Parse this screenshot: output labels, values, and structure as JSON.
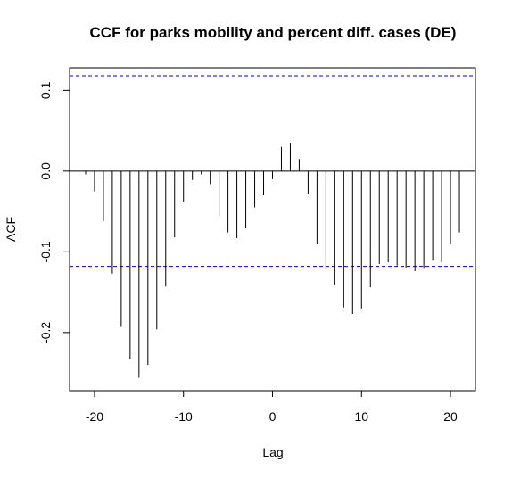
{
  "chart_data": {
    "type": "bar",
    "title": "CCF for parks mobility and percent diff. cases (DE)",
    "xlabel": "Lag",
    "ylabel": "ACF",
    "xlim": [
      -22.8,
      22.8
    ],
    "ylim": [
      -0.272,
      0.128
    ],
    "x_ticks": [
      -20,
      -10,
      0,
      10,
      20
    ],
    "x_tick_labels": [
      "-20",
      "-10",
      "0",
      "10",
      "20"
    ],
    "y_ticks": [
      0.1,
      0.0,
      -0.1,
      -0.2
    ],
    "y_tick_labels": [
      "0.1",
      "0.0",
      "-0.1",
      "-0.2"
    ],
    "confidence_bounds": [
      0.118,
      -0.118
    ],
    "lags": [
      -21,
      -20,
      -19,
      -18,
      -17,
      -16,
      -15,
      -14,
      -13,
      -12,
      -11,
      -10,
      -9,
      -8,
      -7,
      -6,
      -5,
      -4,
      -3,
      -2,
      -1,
      0,
      1,
      2,
      3,
      4,
      5,
      6,
      7,
      8,
      9,
      10,
      11,
      12,
      13,
      14,
      15,
      16,
      17,
      18,
      19,
      20,
      21
    ],
    "values": [
      -0.004,
      -0.025,
      -0.062,
      -0.127,
      -0.193,
      -0.233,
      -0.256,
      -0.24,
      -0.196,
      -0.143,
      -0.082,
      -0.038,
      -0.011,
      -0.004,
      -0.016,
      -0.056,
      -0.076,
      -0.083,
      -0.071,
      -0.045,
      -0.03,
      -0.01,
      0.03,
      0.035,
      0.015,
      -0.028,
      -0.09,
      -0.122,
      -0.141,
      -0.169,
      -0.177,
      -0.17,
      -0.144,
      -0.115,
      -0.113,
      -0.117,
      -0.12,
      -0.124,
      -0.121,
      -0.111,
      -0.113,
      -0.09,
      -0.076
    ],
    "grid": false,
    "colors": {
      "bars": "#000000",
      "bounds": "#0000cd",
      "frame": "#000000"
    }
  }
}
